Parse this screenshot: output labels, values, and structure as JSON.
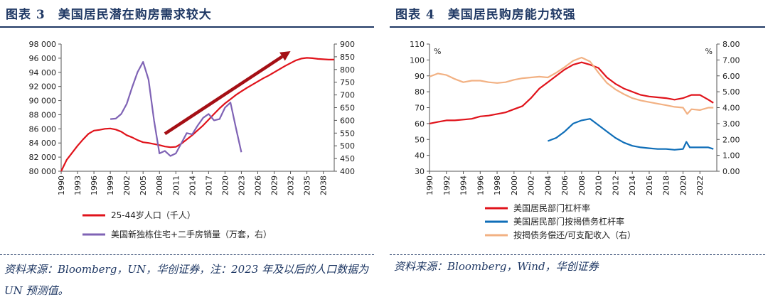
{
  "left": {
    "figure_number": "图表 3",
    "figure_title": "美国居民潜在购房需求较大",
    "source": "资料来源：Bloomberg，UN，华创证券，注：2023 年及以后的人口数据为 UN 预测值。",
    "colors": {
      "series1": "#e0131b",
      "series2": "#7f63b5",
      "arrow": "#a50f15",
      "title": "#1f3864"
    }
  },
  "right": {
    "figure_number": "图表 4",
    "figure_title": "美国居民购房能力较强",
    "source": "资料来源：Bloomberg，Wind，华创证券",
    "left_unit": "%",
    "right_unit": "%",
    "colors": {
      "series1": "#e0131b",
      "series2": "#0f6eb8",
      "series3": "#f2b183"
    }
  },
  "chart_data": [
    {
      "type": "line",
      "title": "美国居民潜在购房需求较大",
      "x_ticks": [
        1990,
        1993,
        1996,
        1999,
        2002,
        2005,
        2008,
        2011,
        2014,
        2017,
        2020,
        2023,
        2026,
        2029,
        2032,
        2035,
        2038
      ],
      "xlim": [
        1990,
        2040
      ],
      "y_left": {
        "lim": [
          80000,
          98000
        ],
        "ticks": [
          "80 000",
          "82 000",
          "84 000",
          "86 000",
          "88 000",
          "90 000",
          "92 000",
          "94 000",
          "96 000",
          "98 000"
        ]
      },
      "y_right": {
        "lim": [
          400,
          900
        ],
        "ticks": [
          "400",
          "450",
          "500",
          "550",
          "600",
          "650",
          "700",
          "750",
          "800",
          "850",
          "900"
        ]
      },
      "grid": false,
      "legend_position": "bottom",
      "series": [
        {
          "name": "25-44岁人口（千人）",
          "axis": "left",
          "x": [
            1990,
            1991,
            1992,
            1993,
            1994,
            1995,
            1996,
            1997,
            1998,
            1999,
            2000,
            2001,
            2002,
            2003,
            2004,
            2005,
            2006,
            2007,
            2008,
            2009,
            2010,
            2011,
            2012,
            2013,
            2014,
            2015,
            2016,
            2017,
            2018,
            2019,
            2020,
            2021,
            2022,
            2023,
            2024,
            2025,
            2026,
            2027,
            2028,
            2029,
            2030,
            2031,
            2032,
            2033,
            2034,
            2035,
            2036,
            2037,
            2038,
            2039,
            2040
          ],
          "values": [
            80000,
            81600,
            82600,
            83600,
            84500,
            85300,
            85750,
            85850,
            86000,
            86050,
            85900,
            85600,
            85100,
            84800,
            84400,
            84100,
            84000,
            83850,
            83700,
            83500,
            83400,
            83450,
            83900,
            84500,
            85100,
            85800,
            86500,
            87300,
            88100,
            88900,
            89600,
            90200,
            90800,
            91300,
            91800,
            92250,
            92700,
            93150,
            93550,
            94000,
            94450,
            94900,
            95300,
            95700,
            95950,
            96050,
            96000,
            95900,
            95850,
            95800,
            95800
          ]
        },
        {
          "name": "美国新独栋住宅+二手房销量（万套，右）",
          "axis": "right",
          "x": [
            1999,
            2000,
            2001,
            2002,
            2003,
            2004,
            2005,
            2006,
            2007,
            2008,
            2009,
            2010,
            2011,
            2012,
            2013,
            2014,
            2015,
            2016,
            2017,
            2018,
            2019,
            2020,
            2021,
            2022,
            2023
          ],
          "values": [
            605,
            607,
            625,
            665,
            730,
            790,
            830,
            760,
            600,
            470,
            480,
            460,
            470,
            510,
            550,
            545,
            580,
            610,
            625,
            600,
            605,
            650,
            670,
            570,
            475
          ]
        }
      ],
      "annotations": [
        {
          "type": "arrow",
          "from": [
            2009,
            85300
          ],
          "to": [
            2032,
            97000
          ]
        }
      ]
    },
    {
      "type": "line",
      "title": "美国居民购房能力较强",
      "x_ticks": [
        1990,
        1992,
        1994,
        1996,
        1998,
        2000,
        2002,
        2004,
        2006,
        2008,
        2010,
        2012,
        2014,
        2016,
        2018,
        2020,
        2022
      ],
      "xlim": [
        1990,
        2024
      ],
      "y_left": {
        "lim": [
          30,
          110
        ],
        "ticks": [
          "30",
          "40",
          "50",
          "60",
          "70",
          "80",
          "90",
          "100",
          "110"
        ]
      },
      "y_right": {
        "lim": [
          0,
          8
        ],
        "ticks": [
          "0.00",
          "1.00",
          "2.00",
          "3.00",
          "4.00",
          "5.00",
          "6.00",
          "7.00",
          "8.00"
        ]
      },
      "grid": false,
      "legend_position": "bottom",
      "series": [
        {
          "name": "美国居民部门杠杆率",
          "axis": "left",
          "x": [
            1990,
            1991,
            1992,
            1993,
            1994,
            1995,
            1996,
            1997,
            1998,
            1999,
            2000,
            2001,
            2002,
            2003,
            2004,
            2005,
            2006,
            2007,
            2008,
            2009,
            2010,
            2011,
            2012,
            2013,
            2014,
            2015,
            2016,
            2017,
            2018,
            2019,
            2020,
            2021,
            2022,
            2023,
            2023.6
          ],
          "values": [
            60,
            61,
            62,
            62,
            62.5,
            63,
            64.5,
            65,
            66,
            67,
            69,
            71,
            76,
            82,
            86,
            90,
            94,
            97,
            98.5,
            97,
            95,
            89,
            85,
            82,
            80,
            78,
            77,
            76.5,
            76,
            75,
            76,
            78,
            78,
            75,
            73
          ]
        },
        {
          "name": "美国居民部门按揭债务杠杆率",
          "axis": "left",
          "x": [
            2004,
            2005,
            2006,
            2007,
            2008,
            2009,
            2010,
            2011,
            2012,
            2013,
            2014,
            2015,
            2016,
            2017,
            2018,
            2019,
            2020,
            2020.4,
            2020.8,
            2021,
            2022,
            2023,
            2023.6
          ],
          "values": [
            49,
            51,
            55,
            60,
            62,
            63,
            59,
            55,
            51,
            48,
            46,
            45,
            44.5,
            44,
            44,
            43.5,
            44,
            48.5,
            45,
            45,
            45,
            45,
            44
          ]
        },
        {
          "name": "按揭债务偿还/可支配收入（右）",
          "axis": "right",
          "x": [
            1990,
            1991,
            1992,
            1993,
            1994,
            1995,
            1996,
            1997,
            1998,
            1999,
            2000,
            2001,
            2002,
            2003,
            2004,
            2005,
            2006,
            2007,
            2008,
            2009,
            2010,
            2011,
            2012,
            2013,
            2014,
            2015,
            2016,
            2017,
            2018,
            2019,
            2020,
            2020.5,
            2021,
            2022,
            2023,
            2023.6
          ],
          "values": [
            5.95,
            6.15,
            6.05,
            5.8,
            5.6,
            5.7,
            5.7,
            5.6,
            5.55,
            5.6,
            5.75,
            5.85,
            5.9,
            5.95,
            5.9,
            6.2,
            6.55,
            6.95,
            7.15,
            6.9,
            6.2,
            5.55,
            5.15,
            4.85,
            4.6,
            4.45,
            4.35,
            4.25,
            4.15,
            4.05,
            4.0,
            3.6,
            3.9,
            3.85,
            4.0,
            4.0
          ]
        }
      ]
    }
  ]
}
